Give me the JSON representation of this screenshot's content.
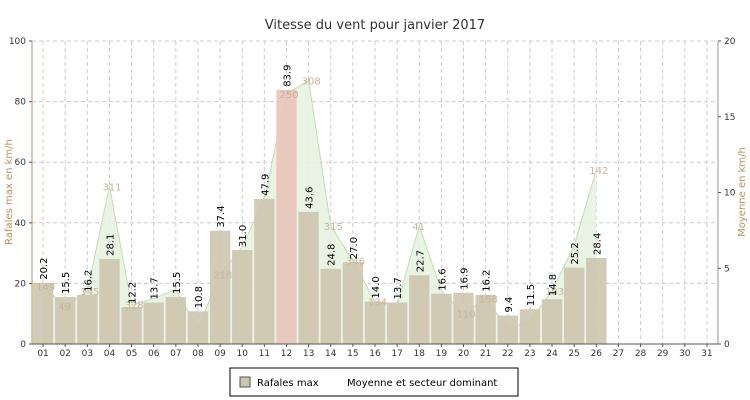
{
  "chart_data": {
    "type": "bar",
    "title": "Vitesse du vent pour janvier 2017",
    "ylabel_left": "Rafales max en km/h",
    "ylabel_right": "Moyenne en km/h",
    "ylim_left": [
      0,
      100
    ],
    "ylim_right": [
      0,
      20
    ],
    "yticks_left": [
      "0",
      "20",
      "40",
      "60",
      "80",
      "100"
    ],
    "yticks_right": [
      "0",
      "5",
      "10",
      "15",
      "20"
    ],
    "categories": [
      "01",
      "02",
      "03",
      "04",
      "05",
      "06",
      "07",
      "08",
      "09",
      "10",
      "11",
      "12",
      "13",
      "14",
      "15",
      "16",
      "17",
      "18",
      "19",
      "20",
      "21",
      "22",
      "23",
      "24",
      "25",
      "26",
      "27",
      "28",
      "29",
      "30",
      "31"
    ],
    "series": [
      {
        "name": "Rafales max",
        "values": [
          20.2,
          15.5,
          16.2,
          28.1,
          12.2,
          13.7,
          15.5,
          10.8,
          37.4,
          31.0,
          47.9,
          83.9,
          43.6,
          24.8,
          27.0,
          14.0,
          13.7,
          22.7,
          16.6,
          16.9,
          16.2,
          9.4,
          11.5,
          14.8,
          25.2,
          28.4,
          null,
          null,
          null,
          null,
          null
        ],
        "labels": [
          "20.2",
          "15.5",
          "16.2",
          "28.1",
          "12.2",
          "13.7",
          "15.5",
          "10.8",
          "37.4",
          "31.0",
          "47.9",
          "83.9",
          "43.6",
          "24.8",
          "27.0",
          "14.0",
          "13.7",
          "22.7",
          "16.6",
          "16.9",
          "16.2",
          "9.4",
          "11.5",
          "14.8",
          "25.2",
          "28.4",
          "",
          "",
          "",
          "",
          ""
        ],
        "color": "#cdc5af"
      },
      {
        "name": "Moyenne et secteur dominant",
        "values": [
          3.8,
          2.5,
          3.5,
          10.4,
          2.6,
          3.0,
          3.6,
          1.0,
          4.6,
          6.4,
          9.6,
          16.5,
          17.4,
          7.8,
          5.5,
          2.8,
          2.6,
          7.8,
          3.5,
          2.0,
          3.0,
          1.0,
          1.5,
          3.5,
          6.5,
          11.5,
          null,
          null,
          null,
          null,
          null
        ],
        "sectors": [
          "149",
          "49",
          "145",
          "311",
          "328",
          "",
          "",
          "",
          "218",
          "",
          "",
          "250",
          "308",
          "315",
          "346",
          "134",
          "",
          "41",
          "",
          "110",
          "158",
          "",
          "",
          "183",
          "",
          "142",
          "",
          "",
          "",
          "",
          ""
        ],
        "color": "#e8f3e1",
        "stroke": "#c2dcb4"
      }
    ],
    "grid": true,
    "legend": "bottom",
    "colors": {
      "bar_fill": "#cdc5af",
      "highlight_fill": "#e9c4b8",
      "area_fill": "#e8f3e1",
      "axis_label": "#b8925a",
      "grid": "#cccccc"
    }
  },
  "legend": {
    "item1": "Rafales max",
    "item2": "Moyenne et secteur dominant"
  }
}
